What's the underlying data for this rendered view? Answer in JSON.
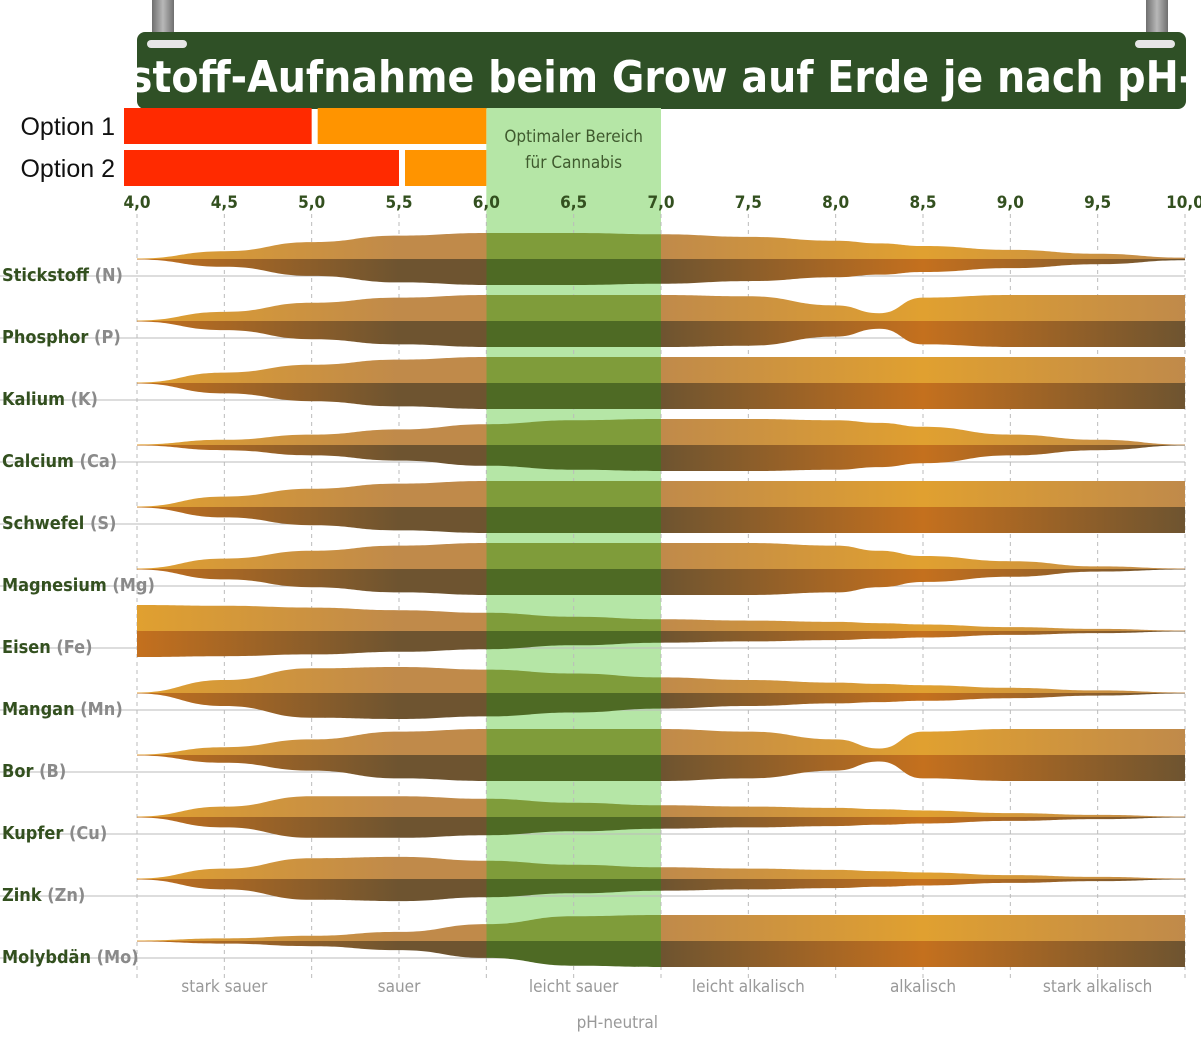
{
  "title": "Nährstoff-Aufnahme beim Grow auf Erde je nach pH-Wert",
  "options": [
    {
      "label": "Option 1",
      "segments": [
        {
          "from": 4.0,
          "to": 5.0,
          "color": "#ff2a00"
        },
        {
          "from": 5.0,
          "to": 6.0,
          "color": "#ff9400"
        }
      ]
    },
    {
      "label": "Option 2",
      "segments": [
        {
          "from": 4.0,
          "to": 5.5,
          "color": "#ff2a00"
        },
        {
          "from": 5.5,
          "to": 6.0,
          "color": "#ff9400"
        }
      ]
    }
  ],
  "colors": {
    "title_bg": "#2f5026",
    "title_text": "#ffffff",
    "label_text": "#33501f",
    "symbol_text": "#8a8a8a",
    "optimal_fill": "#b5e6a6",
    "band_light": "#e0a030",
    "band_dark": "#c4701e",
    "band_top_mid": "#c08a4a",
    "band_bot_mid": "#6e5430",
    "optimal_top": "#7f9c3a",
    "optimal_bot": "#4e6a24",
    "grid": "#bbbbbb",
    "zone_text": "#999999"
  },
  "chart_data": {
    "type": "area",
    "title": "Nährstoff-Aufnahme beim Grow auf Erde je nach pH-Wert",
    "xlabel": "pH-neutral",
    "xlim": [
      4.0,
      10.0
    ],
    "x_ticks": [
      "4,0",
      "4,5",
      "5,0",
      "5,5",
      "6,0",
      "6,5",
      "7,0",
      "7,5",
      "8,0",
      "8,5",
      "9,0",
      "9,5",
      "10,0"
    ],
    "optimal_range": {
      "from": 6.0,
      "to": 7.0,
      "label_line1": "Optimaler Bereich",
      "label_line2": "für Cannabis"
    },
    "zones": [
      {
        "label": "stark sauer",
        "center": 4.5
      },
      {
        "label": "sauer",
        "center": 5.5
      },
      {
        "label": "leicht sauer",
        "center": 6.5
      },
      {
        "label": "leicht alkalisch",
        "center": 7.5
      },
      {
        "label": "alkalisch",
        "center": 8.5
      },
      {
        "label": "stark alkalisch",
        "center": 9.5
      }
    ],
    "x": [
      4.0,
      4.5,
      5.0,
      5.5,
      6.0,
      6.5,
      7.0,
      7.5,
      8.0,
      8.25,
      8.5,
      9.0,
      9.5,
      10.0
    ],
    "series": [
      {
        "name": "Stickstoff",
        "symbol": "(N)",
        "availability": [
          0.0,
          0.3,
          0.65,
          0.9,
          1.0,
          1.0,
          0.95,
          0.85,
          0.7,
          0.6,
          0.5,
          0.35,
          0.2,
          0.05
        ]
      },
      {
        "name": "Phosphor",
        "symbol": "(P)",
        "availability": [
          0.0,
          0.35,
          0.7,
          0.9,
          1.0,
          1.0,
          1.0,
          0.95,
          0.6,
          0.3,
          0.9,
          1.0,
          1.0,
          1.0
        ]
      },
      {
        "name": "Kalium",
        "symbol": "(K)",
        "availability": [
          0.0,
          0.4,
          0.7,
          0.9,
          1.0,
          1.0,
          1.0,
          1.0,
          1.0,
          1.0,
          1.0,
          1.0,
          1.0,
          1.0
        ]
      },
      {
        "name": "Calcium",
        "symbol": "(Ca)",
        "availability": [
          0.0,
          0.2,
          0.4,
          0.6,
          0.8,
          0.95,
          1.0,
          1.0,
          0.95,
          0.85,
          0.7,
          0.4,
          0.2,
          0.0
        ]
      },
      {
        "name": "Schwefel",
        "symbol": "(S)",
        "availability": [
          0.0,
          0.4,
          0.7,
          0.9,
          1.0,
          1.0,
          1.0,
          1.0,
          1.0,
          1.0,
          1.0,
          1.0,
          1.0,
          1.0
        ]
      },
      {
        "name": "Magnesium",
        "symbol": "(Mg)",
        "availability": [
          0.0,
          0.4,
          0.7,
          0.9,
          1.0,
          1.0,
          1.0,
          1.0,
          0.9,
          0.7,
          0.5,
          0.3,
          0.1,
          0.0
        ]
      },
      {
        "name": "Eisen",
        "symbol": "(Fe)",
        "availability": [
          1.0,
          0.97,
          0.9,
          0.8,
          0.7,
          0.55,
          0.45,
          0.4,
          0.35,
          0.3,
          0.25,
          0.15,
          0.08,
          0.0
        ]
      },
      {
        "name": "Mangan",
        "symbol": "(Mn)",
        "availability": [
          0.0,
          0.5,
          0.95,
          1.0,
          0.9,
          0.75,
          0.6,
          0.5,
          0.4,
          0.35,
          0.3,
          0.2,
          0.1,
          0.0
        ]
      },
      {
        "name": "Bor",
        "symbol": "(B)",
        "availability": [
          0.0,
          0.3,
          0.6,
          0.9,
          1.0,
          1.0,
          1.0,
          0.9,
          0.6,
          0.25,
          0.9,
          1.0,
          1.0,
          1.0
        ]
      },
      {
        "name": "Kupfer",
        "symbol": "(Cu)",
        "availability": [
          0.0,
          0.4,
          0.8,
          0.8,
          0.7,
          0.55,
          0.45,
          0.4,
          0.35,
          0.3,
          0.25,
          0.15,
          0.08,
          0.0
        ]
      },
      {
        "name": "Zink",
        "symbol": "(Zn)",
        "availability": [
          0.0,
          0.4,
          0.8,
          0.85,
          0.7,
          0.55,
          0.45,
          0.4,
          0.35,
          0.3,
          0.25,
          0.15,
          0.08,
          0.0
        ]
      },
      {
        "name": "Molybdän",
        "symbol": "(Mo)",
        "availability": [
          0.0,
          0.1,
          0.2,
          0.35,
          0.65,
          0.95,
          1.0,
          1.0,
          1.0,
          1.0,
          1.0,
          1.0,
          1.0,
          1.0
        ]
      }
    ]
  }
}
